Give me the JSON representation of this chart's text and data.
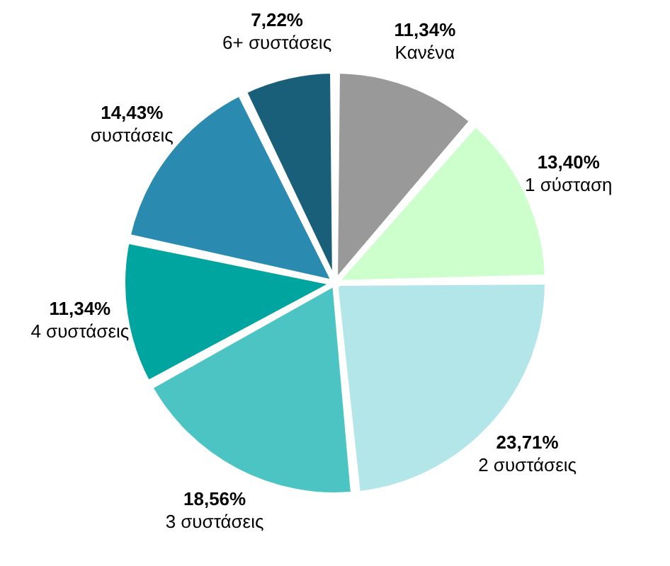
{
  "chart_data": {
    "type": "pie",
    "categories": [
      "Κανένα",
      "1 σύσταση",
      "2 συστάσεις",
      "3 συστάσεις",
      "4 συστάσεις",
      "συστάσεις",
      "6+ συστάσεις"
    ],
    "values": [
      11.34,
      13.4,
      23.71,
      18.56,
      11.34,
      14.43,
      7.22
    ],
    "value_labels": [
      "11,34%",
      "13,40%",
      "23,71%",
      "18,56%",
      "11,34%",
      "14,43%",
      "7,22%"
    ],
    "colors": [
      "#999999",
      "#ccffcc",
      "#b3e6e8",
      "#4dc4c4",
      "#00a5a0",
      "#2a8ab0",
      "#1a5f7a"
    ]
  }
}
